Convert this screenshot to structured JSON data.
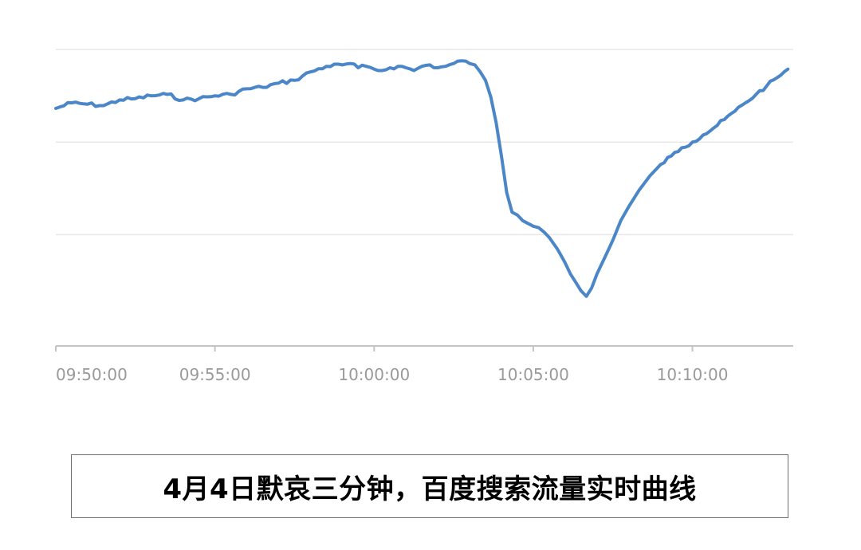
{
  "caption": "4月4日默哀三分钟，百度搜索流量实时曲线",
  "colors": {
    "line": "#4a86c8",
    "grid": "#e8e8e8",
    "axis": "#c4c4c4",
    "tick_label": "#9a9a9a"
  },
  "chart_data": {
    "type": "line",
    "title": "",
    "xlabel": "",
    "ylabel": "",
    "x_tick_labels": [
      "09:50:00",
      "09:55:00",
      "10:00:00",
      "10:05:00",
      "10:10:00"
    ],
    "x_range": [
      "09:50:00",
      "10:13:10"
    ],
    "y_range": [
      0,
      100
    ],
    "y_gridlines": [
      30,
      63,
      96
    ],
    "y_tick_labels_visible": false,
    "grid": true,
    "legend": "none",
    "series": [
      {
        "values": [
          [
            "09:50:00",
            75
          ],
          [
            "09:50:30",
            77
          ],
          [
            "09:51:00",
            76.5
          ],
          [
            "09:51:30",
            76
          ],
          [
            "09:52:00",
            78
          ],
          [
            "09:52:30",
            78.5
          ],
          [
            "09:53:00",
            79.5
          ],
          [
            "09:53:30",
            80
          ],
          [
            "09:54:00",
            78
          ],
          [
            "09:54:30",
            78.5
          ],
          [
            "09:55:00",
            79.5
          ],
          [
            "09:55:30",
            80
          ],
          [
            "09:56:00",
            82
          ],
          [
            "09:56:30",
            82.5
          ],
          [
            "09:57:00",
            84
          ],
          [
            "09:57:30",
            85
          ],
          [
            "09:58:00",
            88
          ],
          [
            "09:58:30",
            90
          ],
          [
            "09:59:00",
            90.5
          ],
          [
            "09:59:15",
            91
          ],
          [
            "09:59:30",
            89.5
          ],
          [
            "09:59:45",
            90
          ],
          [
            "10:00:00",
            89
          ],
          [
            "10:00:15",
            88.5
          ],
          [
            "10:00:30",
            89.5
          ],
          [
            "10:00:45",
            90
          ],
          [
            "10:01:00",
            89.5
          ],
          [
            "10:01:15",
            88.5
          ],
          [
            "10:01:30",
            90
          ],
          [
            "10:01:45",
            90.5
          ],
          [
            "10:02:00",
            89.5
          ],
          [
            "10:02:15",
            90
          ],
          [
            "10:02:30",
            91
          ],
          [
            "10:02:45",
            92
          ],
          [
            "10:03:00",
            91
          ],
          [
            "10:03:10",
            90.5
          ],
          [
            "10:03:20",
            88
          ],
          [
            "10:03:30",
            85
          ],
          [
            "10:03:40",
            79
          ],
          [
            "10:03:50",
            70
          ],
          [
            "10:04:00",
            58
          ],
          [
            "10:04:10",
            45
          ],
          [
            "10:04:20",
            38
          ],
          [
            "10:04:30",
            37
          ],
          [
            "10:04:40",
            35
          ],
          [
            "10:04:50",
            34
          ],
          [
            "10:05:00",
            33
          ],
          [
            "10:05:10",
            32.5
          ],
          [
            "10:05:20",
            31
          ],
          [
            "10:05:30",
            29
          ],
          [
            "10:05:45",
            25
          ],
          [
            "10:06:00",
            20
          ],
          [
            "10:06:10",
            16
          ],
          [
            "10:06:20",
            13
          ],
          [
            "10:06:30",
            10
          ],
          [
            "10:06:40",
            8
          ],
          [
            "10:06:50",
            11
          ],
          [
            "10:07:00",
            16
          ],
          [
            "10:07:15",
            22
          ],
          [
            "10:07:30",
            28
          ],
          [
            "10:07:45",
            35
          ],
          [
            "10:08:00",
            40
          ],
          [
            "10:08:20",
            46
          ],
          [
            "10:08:40",
            51
          ],
          [
            "10:09:00",
            55
          ],
          [
            "10:09:20",
            58
          ],
          [
            "10:09:40",
            61
          ],
          [
            "10:10:00",
            63
          ],
          [
            "10:10:20",
            65.5
          ],
          [
            "10:10:40",
            68
          ],
          [
            "10:11:00",
            71
          ],
          [
            "10:11:20",
            74
          ],
          [
            "10:11:40",
            77
          ],
          [
            "10:12:00",
            80
          ],
          [
            "10:12:20",
            83
          ],
          [
            "10:12:40",
            86
          ],
          [
            "10:13:00",
            89
          ]
        ]
      }
    ]
  }
}
